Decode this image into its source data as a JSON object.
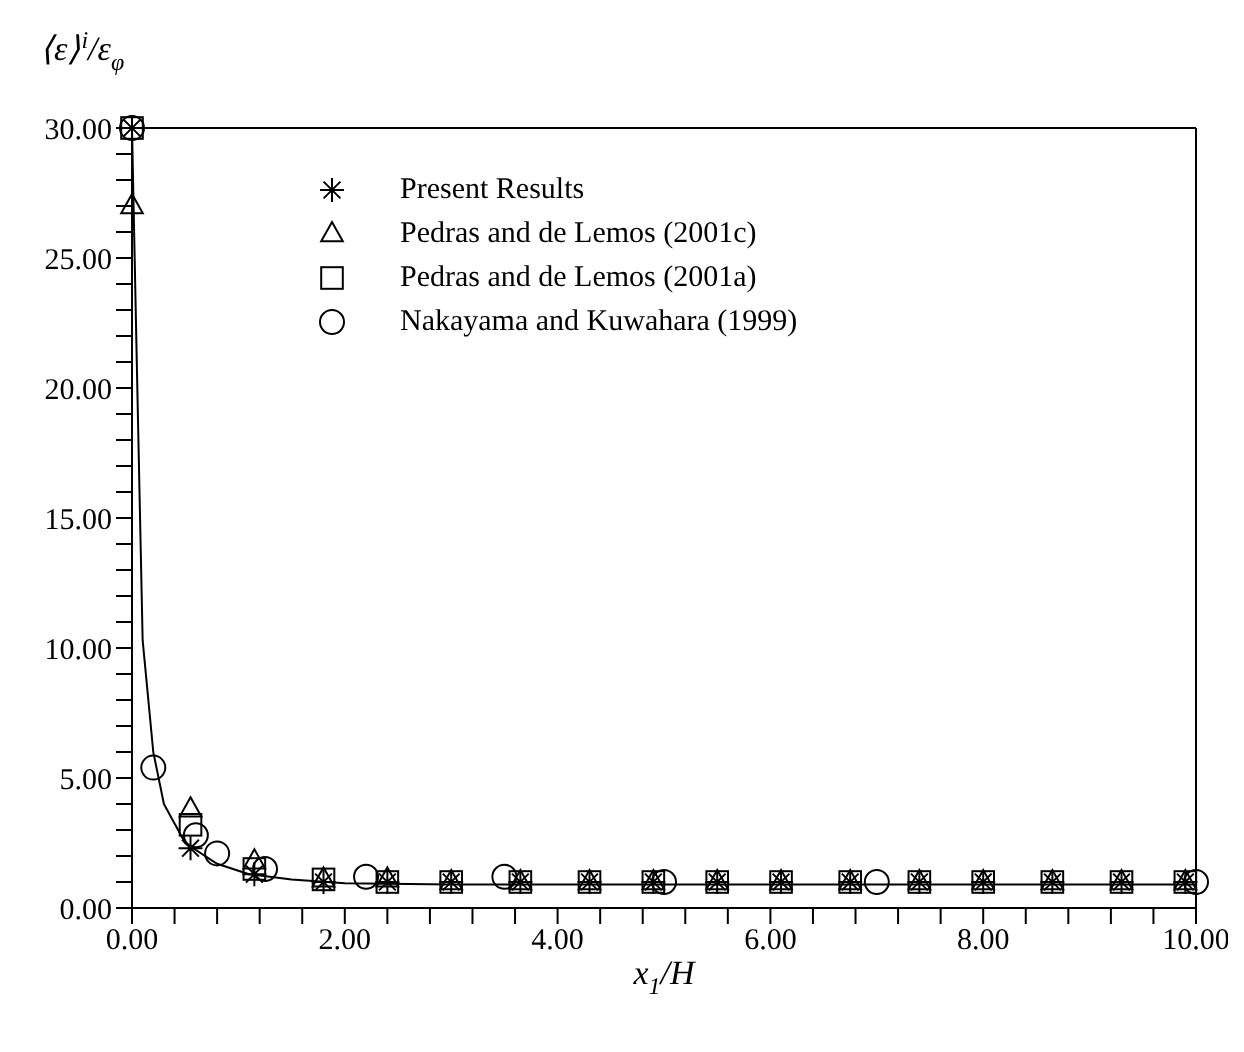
{
  "chart_data": {
    "type": "scatter",
    "xlabel": "x$_{1}$/H",
    "ylabel": "⟨ε⟩$^{i}$/ε$_{φ}$",
    "xlim": [
      0,
      10
    ],
    "ylim": [
      0,
      30
    ],
    "xticks": [
      {
        "value": 0,
        "label": "0.00"
      },
      {
        "value": 0.4,
        "label": null
      },
      {
        "value": 0.8,
        "label": null
      },
      {
        "value": 1.2,
        "label": null
      },
      {
        "value": 1.6,
        "label": null
      },
      {
        "value": 2,
        "label": "2.00"
      },
      {
        "value": 2.4,
        "label": null
      },
      {
        "value": 2.8,
        "label": null
      },
      {
        "value": 3.2,
        "label": null
      },
      {
        "value": 3.6,
        "label": null
      },
      {
        "value": 4,
        "label": "4.00"
      },
      {
        "value": 4.4,
        "label": null
      },
      {
        "value": 4.8,
        "label": null
      },
      {
        "value": 5.2,
        "label": null
      },
      {
        "value": 5.6,
        "label": null
      },
      {
        "value": 6,
        "label": "6.00"
      },
      {
        "value": 6.4,
        "label": null
      },
      {
        "value": 6.8,
        "label": null
      },
      {
        "value": 7.2,
        "label": null
      },
      {
        "value": 7.6,
        "label": null
      },
      {
        "value": 8,
        "label": "8.00"
      },
      {
        "value": 8.4,
        "label": null
      },
      {
        "value": 8.8,
        "label": null
      },
      {
        "value": 9.2,
        "label": null
      },
      {
        "value": 9.6,
        "label": null
      },
      {
        "value": 10,
        "label": "10.00"
      }
    ],
    "yticks": [
      {
        "value": 0,
        "label": "0.00"
      },
      {
        "value": 1,
        "label": null
      },
      {
        "value": 2,
        "label": null
      },
      {
        "value": 3,
        "label": null
      },
      {
        "value": 4,
        "label": null
      },
      {
        "value": 5,
        "label": "5.00"
      },
      {
        "value": 6,
        "label": null
      },
      {
        "value": 7,
        "label": null
      },
      {
        "value": 8,
        "label": null
      },
      {
        "value": 9,
        "label": null
      },
      {
        "value": 10,
        "label": "10.00"
      },
      {
        "value": 11,
        "label": null
      },
      {
        "value": 12,
        "label": null
      },
      {
        "value": 13,
        "label": null
      },
      {
        "value": 14,
        "label": null
      },
      {
        "value": 15,
        "label": "15.00"
      },
      {
        "value": 16,
        "label": null
      },
      {
        "value": 17,
        "label": null
      },
      {
        "value": 18,
        "label": null
      },
      {
        "value": 19,
        "label": null
      },
      {
        "value": 20,
        "label": "20.00"
      },
      {
        "value": 21,
        "label": null
      },
      {
        "value": 22,
        "label": null
      },
      {
        "value": 23,
        "label": null
      },
      {
        "value": 24,
        "label": null
      },
      {
        "value": 25,
        "label": "25.00"
      },
      {
        "value": 26,
        "label": null
      },
      {
        "value": 27,
        "label": null
      },
      {
        "value": 28,
        "label": null
      },
      {
        "value": 29,
        "label": null
      },
      {
        "value": 30,
        "label": "30.00"
      }
    ],
    "legend": "top left",
    "series": [
      {
        "type": "line",
        "marker": "none",
        "color": "#000000",
        "x": [
          0,
          0.05,
          0.1,
          0.2,
          0.3,
          0.5,
          0.8,
          1.1,
          1.5,
          2,
          3,
          5,
          10
        ],
        "values": [
          30,
          20,
          10.3,
          6,
          4,
          2.5,
          1.7,
          1.3,
          1.1,
          0.95,
          0.9,
          0.9,
          0.9
        ]
      },
      {
        "name": "Present Results",
        "marker": "cross",
        "color": "#000000",
        "x": [
          0,
          0.55,
          1.15,
          1.8,
          2.4,
          3.0,
          3.65,
          4.3,
          4.9,
          5.5,
          6.1,
          6.75,
          7.4,
          8.0,
          8.65,
          9.3,
          9.9
        ],
        "values": [
          30,
          2.3,
          1.3,
          1.0,
          1.0,
          1.0,
          1.0,
          1.0,
          1.0,
          1.0,
          1.0,
          1.0,
          1.0,
          1.0,
          1.0,
          1.0,
          1.0
        ]
      },
      {
        "name": "Pedras and de Lemos (2001c)",
        "marker": "triangle",
        "color": "#000000",
        "x": [
          0,
          0.55,
          1.15,
          1.8,
          2.4,
          3.0,
          3.65,
          4.3,
          4.9,
          5.5,
          6.1,
          6.75,
          7.4,
          8.0,
          8.65,
          9.3,
          9.9
        ],
        "values": [
          27,
          3.8,
          1.8,
          1.1,
          1.1,
          1.0,
          1.0,
          1.0,
          1.0,
          1.0,
          1.0,
          1.0,
          1.0,
          1.0,
          1.0,
          1.0,
          1.0
        ]
      },
      {
        "name": "Pedras and de Lemos (2001a)",
        "marker": "square",
        "color": "#000000",
        "x": [
          0,
          0.55,
          1.15,
          1.8,
          2.4,
          3.0,
          3.65,
          4.3,
          4.9,
          5.5,
          6.1,
          6.75,
          7.4,
          8.0,
          8.65,
          9.3,
          9.9
        ],
        "values": [
          30,
          3.2,
          1.5,
          1.1,
          1.0,
          1.0,
          1.0,
          1.0,
          1.0,
          1.0,
          1.0,
          1.0,
          1.0,
          1.0,
          1.0,
          1.0,
          1.0
        ]
      },
      {
        "name": "Nakayama and Kuwahara (1999)",
        "marker": "circle",
        "color": "#000000",
        "x": [
          0,
          0.2,
          0.6,
          0.8,
          1.25,
          2.2,
          3.5,
          5.0,
          7.0,
          10.0
        ],
        "values": [
          30,
          5.4,
          2.8,
          2.1,
          1.5,
          1.2,
          1.2,
          1.0,
          1.0,
          1.0
        ]
      }
    ]
  }
}
